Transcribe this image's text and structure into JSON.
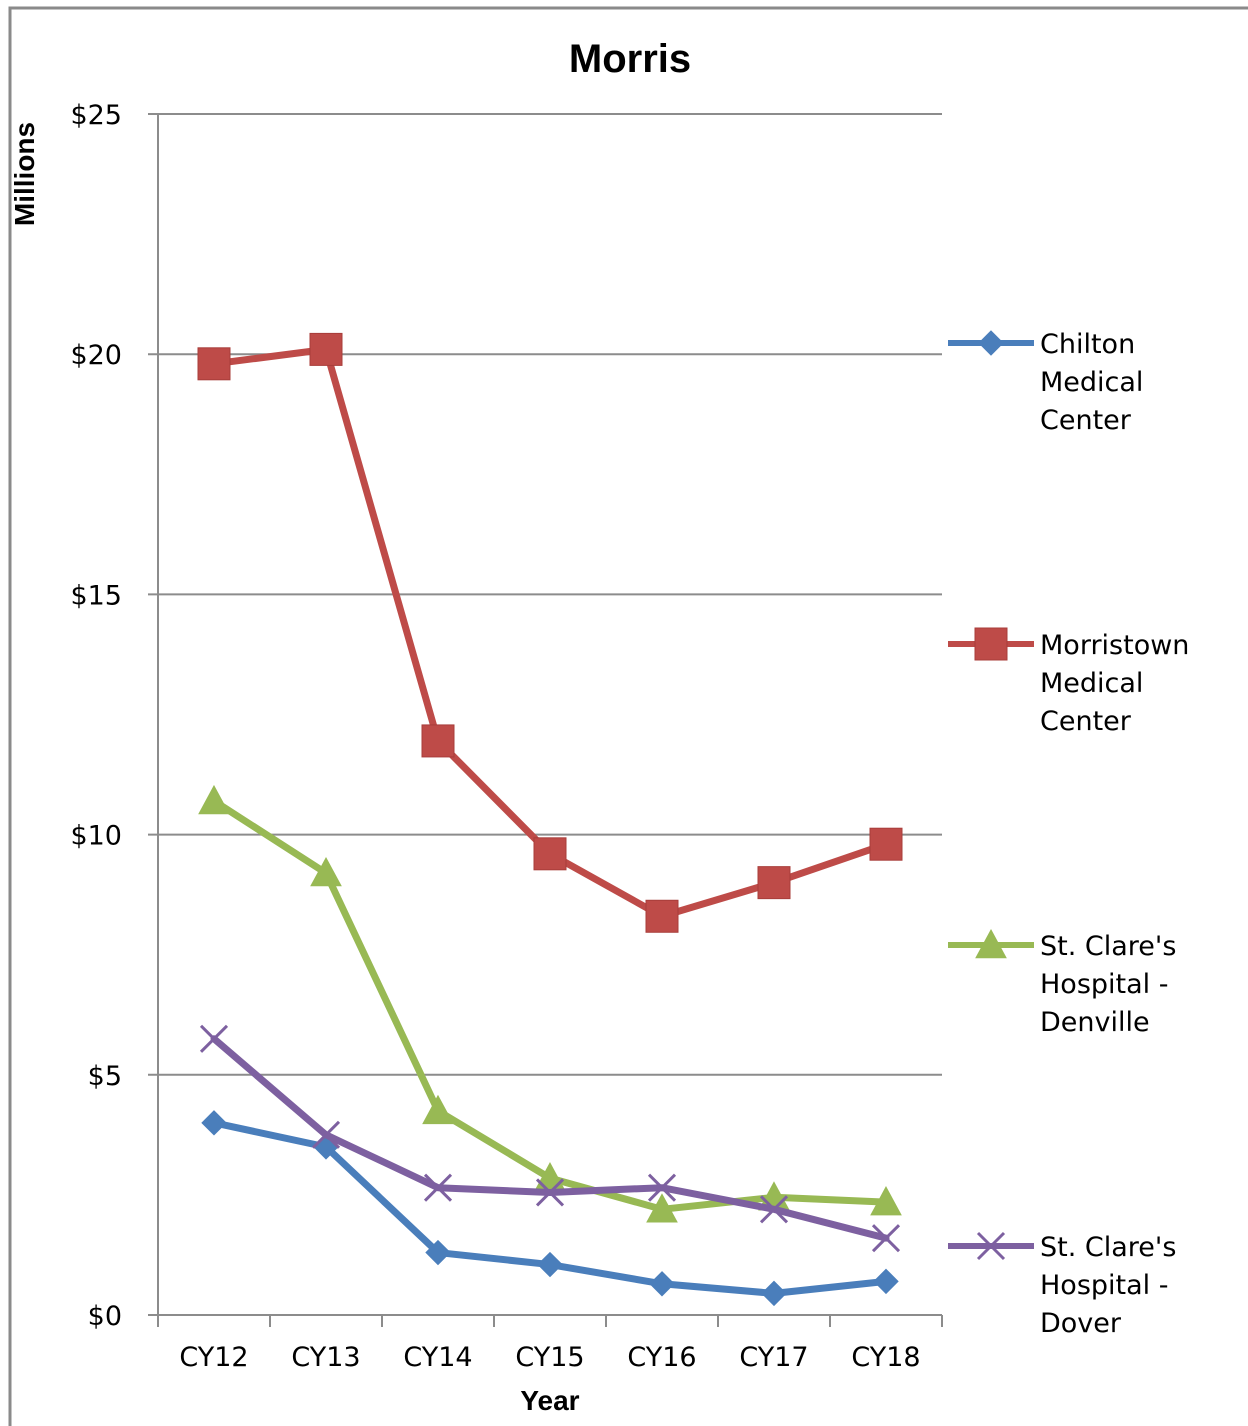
{
  "chart_data": {
    "type": "line",
    "title": "Morris",
    "xlabel": "Year",
    "ylabel": "Millions",
    "categories": [
      "CY12",
      "CY13",
      "CY14",
      "CY15",
      "CY16",
      "CY17",
      "CY18"
    ],
    "ylim": [
      0,
      25
    ],
    "yticks": [
      0,
      5,
      10,
      15,
      20,
      25
    ],
    "ytick_labels": [
      "$0",
      "$5",
      "$10",
      "$15",
      "$20",
      "$25"
    ],
    "grid": true,
    "legend_position": "right",
    "series": [
      {
        "name": "Chilton Medical Center",
        "legend_lines": [
          "Chilton",
          "Medical",
          "Center"
        ],
        "color": "#4a7ebb",
        "marker": "diamond",
        "values": [
          4.0,
          3.5,
          1.3,
          1.05,
          0.65,
          0.45,
          0.7
        ]
      },
      {
        "name": "Morristown Medical Center",
        "legend_lines": [
          "Morristown",
          "Medical",
          "Center"
        ],
        "color": "#be4b48",
        "marker": "square",
        "values": [
          19.8,
          20.1,
          11.95,
          9.6,
          8.3,
          9.0,
          9.8
        ]
      },
      {
        "name": "St. Clare's Hospital - Denville",
        "legend_lines": [
          "St. Clare's",
          "Hospital -",
          "Denville"
        ],
        "color": "#98b954",
        "marker": "triangle",
        "values": [
          10.7,
          9.2,
          4.25,
          2.85,
          2.2,
          2.45,
          2.35
        ]
      },
      {
        "name": "St. Clare's Hospital - Dover",
        "legend_lines": [
          "St. Clare's",
          "Hospital -",
          "Dover"
        ],
        "color": "#7d60a0",
        "marker": "x",
        "values": [
          5.75,
          3.75,
          2.65,
          2.55,
          2.65,
          2.2,
          1.6
        ]
      }
    ]
  }
}
